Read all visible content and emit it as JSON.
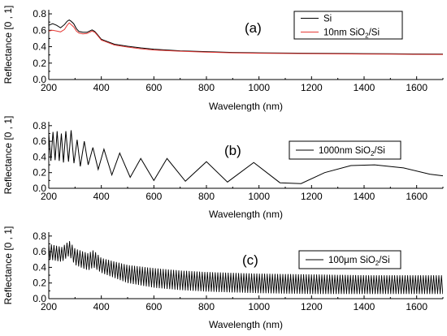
{
  "chart_data": [
    {
      "type": "line",
      "panel_label": "(a)",
      "xlabel": "Wavelength (nm)",
      "ylabel": "Reflectance [0 , 1]",
      "xlim": [
        200,
        1700
      ],
      "ylim": [
        0,
        0.85
      ],
      "xticks": [
        "200",
        "400",
        "600",
        "800",
        "1000",
        "1200",
        "1400",
        "1600"
      ],
      "yticks": [
        "0.0",
        "0.2",
        "0.4",
        "0.6",
        "0.8"
      ],
      "legend": {
        "position": "top-right"
      },
      "series": [
        {
          "name": "Si",
          "legend_label": {
            "pre": "Si",
            "sub": "",
            "post": ""
          },
          "color": "#000000",
          "x": [
            200,
            215,
            230,
            245,
            260,
            270,
            278,
            285,
            295,
            305,
            315,
            330,
            345,
            355,
            365,
            375,
            385,
            400,
            450,
            500,
            550,
            600,
            700,
            800,
            900,
            1000,
            1100,
            1200,
            1300,
            1400,
            1500,
            1600,
            1700
          ],
          "y": [
            0.66,
            0.68,
            0.66,
            0.63,
            0.67,
            0.71,
            0.725,
            0.71,
            0.68,
            0.62,
            0.585,
            0.575,
            0.575,
            0.59,
            0.605,
            0.585,
            0.55,
            0.49,
            0.43,
            0.405,
            0.385,
            0.37,
            0.35,
            0.34,
            0.33,
            0.325,
            0.322,
            0.32,
            0.317,
            0.315,
            0.313,
            0.311,
            0.31
          ]
        },
        {
          "name": "10nm SiO2/Si",
          "legend_label": {
            "pre": "10nm SiO",
            "sub": "2",
            "post": "/Si"
          },
          "color": "#e53935",
          "x": [
            200,
            215,
            230,
            245,
            260,
            270,
            278,
            285,
            295,
            305,
            315,
            330,
            345,
            355,
            365,
            375,
            385,
            400,
            450,
            500,
            550,
            600,
            700,
            800,
            900,
            1000,
            1100,
            1200,
            1300,
            1400,
            1500,
            1600,
            1700
          ],
          "y": [
            0.59,
            0.6,
            0.59,
            0.58,
            0.61,
            0.66,
            0.69,
            0.67,
            0.64,
            0.59,
            0.565,
            0.555,
            0.56,
            0.575,
            0.59,
            0.575,
            0.54,
            0.48,
            0.42,
            0.395,
            0.375,
            0.36,
            0.345,
            0.333,
            0.325,
            0.32,
            0.317,
            0.315,
            0.312,
            0.31,
            0.308,
            0.306,
            0.305
          ]
        }
      ]
    },
    {
      "type": "line",
      "panel_label": "(b)",
      "xlabel": "Wavelength (nm)",
      "ylabel": "Reflectance [0 , 1]",
      "xlim": [
        200,
        1700
      ],
      "ylim": [
        0,
        0.85
      ],
      "xticks": [
        "200",
        "400",
        "600",
        "800",
        "1000",
        "1200",
        "1400",
        "1600"
      ],
      "yticks": [
        "0.0",
        "0.2",
        "0.4",
        "0.6",
        "0.8"
      ],
      "legend": {
        "position": "center-right"
      },
      "series": [
        {
          "name": "1000nm SiO2/Si",
          "legend_label": {
            "pre": "1000nm SiO",
            "sub": "2",
            "post": "/Si"
          },
          "color": "#000000",
          "x": [
            200,
            208,
            216,
            224,
            232,
            240,
            248,
            256,
            265,
            275,
            285,
            296,
            308,
            320,
            335,
            350,
            368,
            388,
            410,
            440,
            470,
            510,
            550,
            600,
            650,
            720,
            800,
            880,
            980,
            1080,
            1160,
            1250,
            1350,
            1440,
            1550,
            1650,
            1700
          ],
          "y": [
            0.7,
            0.35,
            0.72,
            0.36,
            0.73,
            0.35,
            0.7,
            0.33,
            0.73,
            0.34,
            0.74,
            0.32,
            0.62,
            0.28,
            0.6,
            0.3,
            0.52,
            0.24,
            0.5,
            0.17,
            0.45,
            0.14,
            0.38,
            0.1,
            0.38,
            0.09,
            0.34,
            0.08,
            0.33,
            0.07,
            0.06,
            0.2,
            0.29,
            0.3,
            0.26,
            0.18,
            0.16
          ]
        }
      ]
    },
    {
      "type": "line",
      "panel_label": "(c)",
      "xlabel": "Wavelength (nm)",
      "ylabel": "Reflectance [0 , 1]",
      "xlim": [
        200,
        1700
      ],
      "ylim": [
        0,
        0.85
      ],
      "xticks": [
        "200",
        "400",
        "600",
        "800",
        "1000",
        "1200",
        "1400",
        "1600"
      ],
      "yticks": [
        "0.0",
        "0.2",
        "0.4",
        "0.6",
        "0.8"
      ],
      "legend": {
        "position": "center-right"
      },
      "series": [
        {
          "name": "100μm SiO2/Si",
          "legend_label": {
            "pre": "100μm SiO",
            "sub": "2",
            "post": "/Si"
          },
          "color": "#000000",
          "x": [
            200,
            250,
            278,
            300,
            350,
            370,
            400,
            500,
            600,
            700,
            800,
            900,
            1000,
            1100,
            1200,
            1300,
            1400,
            1500,
            1600,
            1700
          ],
          "y_upper": [
            0.7,
            0.66,
            0.74,
            0.64,
            0.58,
            0.62,
            0.52,
            0.43,
            0.39,
            0.36,
            0.34,
            0.33,
            0.32,
            0.315,
            0.31,
            0.305,
            0.3,
            0.3,
            0.3,
            0.3
          ],
          "y_lower": [
            0.5,
            0.47,
            0.55,
            0.43,
            0.36,
            0.4,
            0.33,
            0.2,
            0.14,
            0.11,
            0.09,
            0.08,
            0.07,
            0.065,
            0.06,
            0.06,
            0.06,
            0.06,
            0.06,
            0.06
          ]
        }
      ]
    }
  ]
}
